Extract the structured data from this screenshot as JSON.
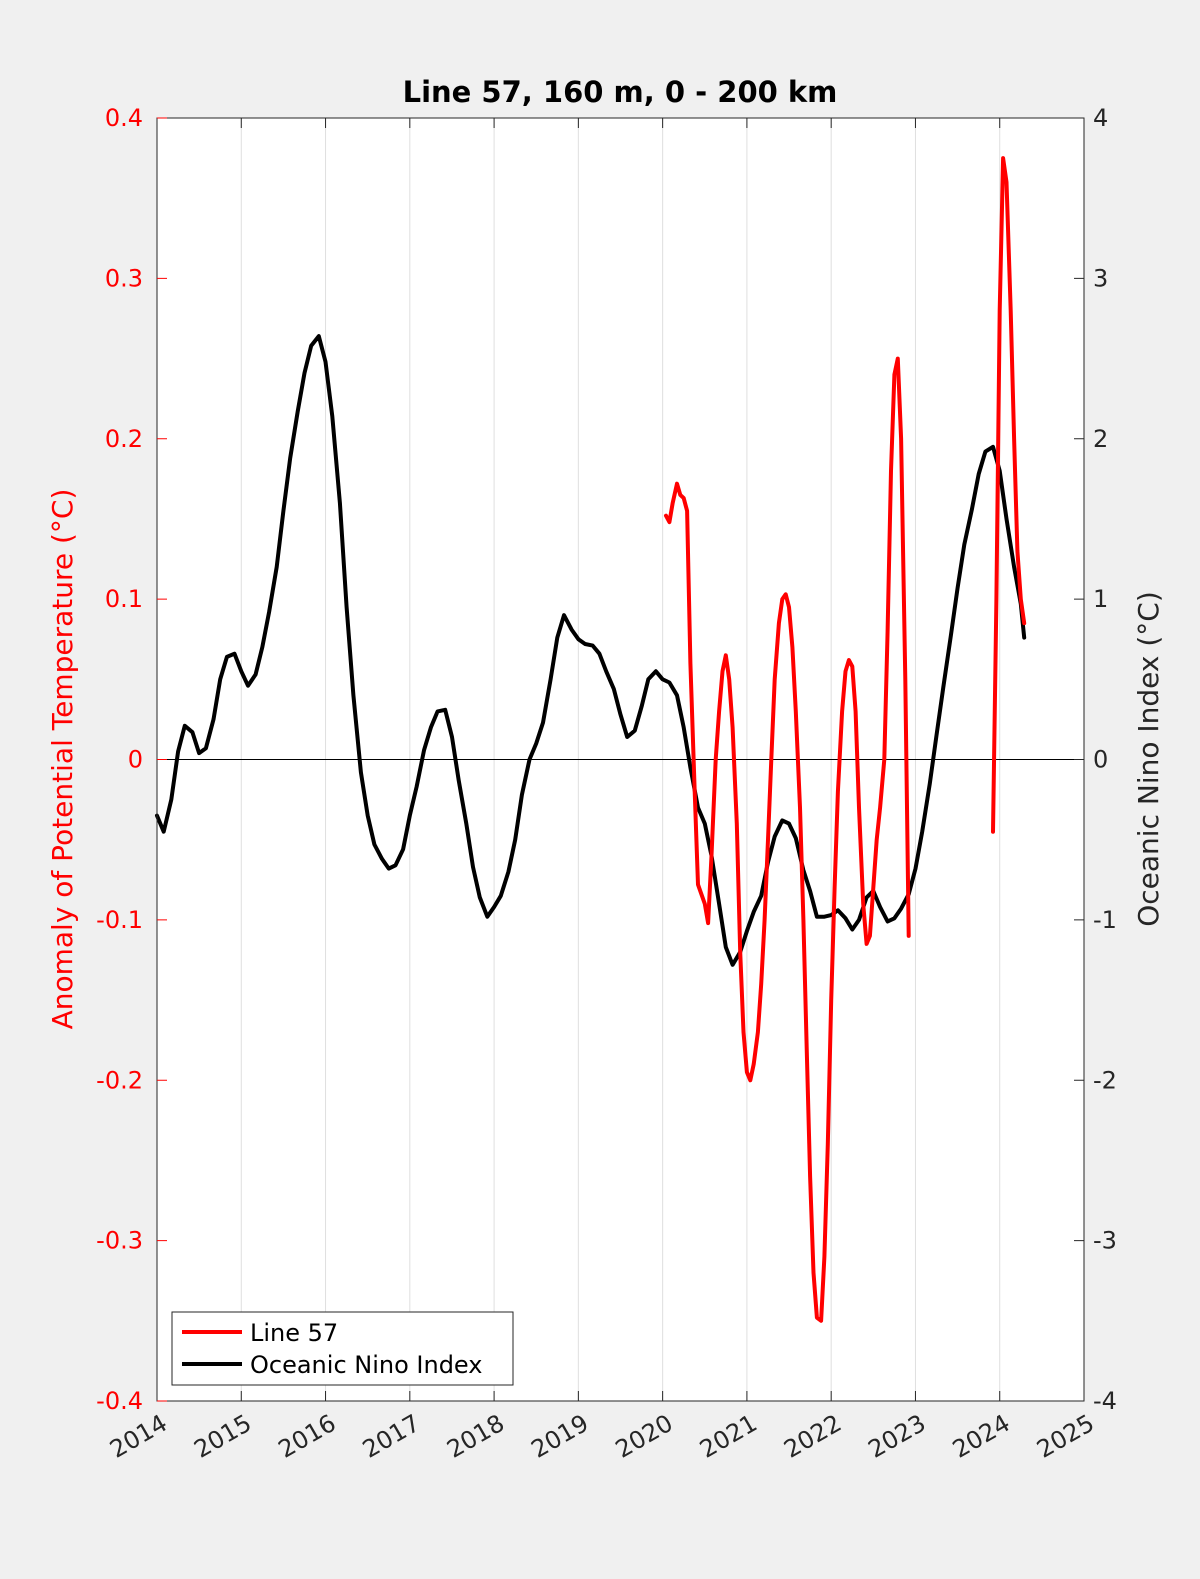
{
  "chart_data": {
    "type": "line",
    "title": "Line 57, 160 m, 0 - 200 km",
    "xlabel": "",
    "ylabel_left": "Anomaly of Potential Temperature (°C)",
    "ylabel_right": "Oceanic Nino Index (°C)",
    "xlim": [
      2014,
      2025
    ],
    "ylim_left": [
      -0.4,
      0.4
    ],
    "ylim_right": [
      -4,
      4
    ],
    "x_ticks": [
      "2014",
      "2015",
      "2016",
      "2017",
      "2018",
      "2019",
      "2020",
      "2021",
      "2022",
      "2023",
      "2024",
      "2025"
    ],
    "y_ticks_left": [
      "0.4",
      "0.3",
      "0.2",
      "0.1",
      "0",
      "-0.1",
      "-0.2",
      "-0.3",
      "-0.4"
    ],
    "y_ticks_right": [
      "4",
      "3",
      "2",
      "1",
      "0",
      "-1",
      "-2",
      "-3",
      "-4"
    ],
    "grid": "vertical",
    "legend_position": "bottom-left",
    "colors": {
      "line57": "#ff0000",
      "oni": "#000000",
      "left_axis": "#ff0000",
      "right_axis": "#262626"
    },
    "series": [
      {
        "name": "Line 57",
        "axis": "left",
        "color": "#ff0000",
        "segments": [
          [
            [
              2020.04,
              0.152
            ],
            [
              2020.08,
              0.148
            ],
            [
              2020.12,
              0.16
            ],
            [
              2020.17,
              0.172
            ],
            [
              2020.21,
              0.165
            ],
            [
              2020.25,
              0.163
            ],
            [
              2020.29,
              0.155
            ],
            [
              2020.33,
              0.06
            ],
            [
              2020.38,
              -0.02
            ],
            [
              2020.42,
              -0.078
            ],
            [
              2020.5,
              -0.09
            ],
            [
              2020.54,
              -0.102
            ],
            [
              2020.58,
              -0.06
            ],
            [
              2020.63,
              0.0
            ],
            [
              2020.67,
              0.03
            ],
            [
              2020.71,
              0.055
            ],
            [
              2020.75,
              0.065
            ],
            [
              2020.79,
              0.05
            ],
            [
              2020.83,
              0.02
            ],
            [
              2020.88,
              -0.04
            ],
            [
              2020.92,
              -0.12
            ],
            [
              2020.96,
              -0.17
            ],
            [
              2021.0,
              -0.195
            ],
            [
              2021.04,
              -0.2
            ],
            [
              2021.08,
              -0.19
            ],
            [
              2021.13,
              -0.17
            ],
            [
              2021.17,
              -0.14
            ],
            [
              2021.21,
              -0.1
            ],
            [
              2021.25,
              -0.05
            ],
            [
              2021.29,
              0.0
            ],
            [
              2021.33,
              0.05
            ],
            [
              2021.38,
              0.085
            ],
            [
              2021.42,
              0.1
            ],
            [
              2021.46,
              0.103
            ],
            [
              2021.5,
              0.095
            ],
            [
              2021.54,
              0.07
            ],
            [
              2021.58,
              0.03
            ],
            [
              2021.63,
              -0.03
            ],
            [
              2021.67,
              -0.1
            ],
            [
              2021.71,
              -0.18
            ],
            [
              2021.75,
              -0.26
            ],
            [
              2021.79,
              -0.32
            ],
            [
              2021.83,
              -0.348
            ],
            [
              2021.88,
              -0.35
            ],
            [
              2021.92,
              -0.31
            ],
            [
              2021.96,
              -0.24
            ],
            [
              2022.0,
              -0.15
            ],
            [
              2022.04,
              -0.08
            ],
            [
              2022.08,
              -0.02
            ],
            [
              2022.13,
              0.03
            ],
            [
              2022.17,
              0.055
            ],
            [
              2022.21,
              0.062
            ],
            [
              2022.25,
              0.058
            ],
            [
              2022.29,
              0.03
            ],
            [
              2022.33,
              -0.03
            ],
            [
              2022.38,
              -0.09
            ],
            [
              2022.42,
              -0.115
            ],
            [
              2022.46,
              -0.11
            ],
            [
              2022.5,
              -0.08
            ],
            [
              2022.54,
              -0.05
            ],
            [
              2022.58,
              -0.03
            ],
            [
              2022.63,
              0.0
            ],
            [
              2022.67,
              0.08
            ],
            [
              2022.71,
              0.18
            ],
            [
              2022.75,
              0.24
            ],
            [
              2022.79,
              0.25
            ],
            [
              2022.83,
              0.2
            ],
            [
              2022.88,
              0.05
            ],
            [
              2022.92,
              -0.11
            ]
          ],
          [
            [
              2023.92,
              -0.045
            ],
            [
              2023.96,
              0.1
            ],
            [
              2024.0,
              0.28
            ],
            [
              2024.04,
              0.375
            ],
            [
              2024.08,
              0.36
            ],
            [
              2024.13,
              0.28
            ],
            [
              2024.17,
              0.2
            ],
            [
              2024.21,
              0.13
            ],
            [
              2024.25,
              0.1
            ],
            [
              2024.29,
              0.085
            ]
          ]
        ]
      },
      {
        "name": "Oceanic Nino Index",
        "axis": "right",
        "color": "#000000",
        "segments": [
          [
            [
              2014.0,
              -0.35
            ],
            [
              2014.08,
              -0.45
            ],
            [
              2014.17,
              -0.25
            ],
            [
              2014.25,
              0.05
            ],
            [
              2014.33,
              0.21
            ],
            [
              2014.42,
              0.17
            ],
            [
              2014.5,
              0.04
            ],
            [
              2014.58,
              0.07
            ],
            [
              2014.67,
              0.25
            ],
            [
              2014.75,
              0.5
            ],
            [
              2014.83,
              0.64
            ],
            [
              2014.92,
              0.66
            ],
            [
              2015.0,
              0.55
            ],
            [
              2015.08,
              0.46
            ],
            [
              2015.17,
              0.53
            ],
            [
              2015.25,
              0.7
            ],
            [
              2015.33,
              0.92
            ],
            [
              2015.42,
              1.2
            ],
            [
              2015.5,
              1.55
            ],
            [
              2015.58,
              1.88
            ],
            [
              2015.67,
              2.17
            ],
            [
              2015.75,
              2.41
            ],
            [
              2015.83,
              2.58
            ],
            [
              2015.92,
              2.64
            ],
            [
              2016.0,
              2.48
            ],
            [
              2016.08,
              2.14
            ],
            [
              2016.17,
              1.6
            ],
            [
              2016.25,
              0.95
            ],
            [
              2016.33,
              0.4
            ],
            [
              2016.42,
              -0.08
            ],
            [
              2016.5,
              -0.35
            ],
            [
              2016.58,
              -0.53
            ],
            [
              2016.67,
              -0.62
            ],
            [
              2016.75,
              -0.68
            ],
            [
              2016.83,
              -0.66
            ],
            [
              2016.92,
              -0.56
            ],
            [
              2017.0,
              -0.35
            ],
            [
              2017.08,
              -0.17
            ],
            [
              2017.17,
              0.06
            ],
            [
              2017.25,
              0.2
            ],
            [
              2017.33,
              0.3
            ],
            [
              2017.42,
              0.31
            ],
            [
              2017.5,
              0.14
            ],
            [
              2017.58,
              -0.13
            ],
            [
              2017.67,
              -0.4
            ],
            [
              2017.75,
              -0.67
            ],
            [
              2017.83,
              -0.86
            ],
            [
              2017.92,
              -0.98
            ],
            [
              2018.0,
              -0.92
            ],
            [
              2018.08,
              -0.85
            ],
            [
              2018.17,
              -0.7
            ],
            [
              2018.25,
              -0.5
            ],
            [
              2018.33,
              -0.22
            ],
            [
              2018.42,
              0.0
            ],
            [
              2018.5,
              0.1
            ],
            [
              2018.58,
              0.23
            ],
            [
              2018.67,
              0.5
            ],
            [
              2018.75,
              0.76
            ],
            [
              2018.83,
              0.9
            ],
            [
              2018.92,
              0.81
            ],
            [
              2019.0,
              0.75
            ],
            [
              2019.08,
              0.72
            ],
            [
              2019.17,
              0.71
            ],
            [
              2019.25,
              0.66
            ],
            [
              2019.33,
              0.55
            ],
            [
              2019.42,
              0.44
            ],
            [
              2019.5,
              0.28
            ],
            [
              2019.58,
              0.14
            ],
            [
              2019.67,
              0.18
            ],
            [
              2019.75,
              0.33
            ],
            [
              2019.83,
              0.5
            ],
            [
              2019.92,
              0.55
            ],
            [
              2020.0,
              0.5
            ],
            [
              2020.08,
              0.48
            ],
            [
              2020.17,
              0.4
            ],
            [
              2020.25,
              0.2
            ],
            [
              2020.33,
              -0.05
            ],
            [
              2020.42,
              -0.3
            ],
            [
              2020.5,
              -0.4
            ],
            [
              2020.58,
              -0.6
            ],
            [
              2020.67,
              -0.9
            ],
            [
              2020.75,
              -1.17
            ],
            [
              2020.83,
              -1.28
            ],
            [
              2020.92,
              -1.2
            ],
            [
              2021.0,
              -1.07
            ],
            [
              2021.08,
              -0.95
            ],
            [
              2021.17,
              -0.85
            ],
            [
              2021.25,
              -0.64
            ],
            [
              2021.33,
              -0.48
            ],
            [
              2021.42,
              -0.38
            ],
            [
              2021.5,
              -0.4
            ],
            [
              2021.58,
              -0.49
            ],
            [
              2021.67,
              -0.69
            ],
            [
              2021.75,
              -0.82
            ],
            [
              2021.83,
              -0.98
            ],
            [
              2021.92,
              -0.98
            ],
            [
              2022.0,
              -0.97
            ],
            [
              2022.08,
              -0.94
            ],
            [
              2022.17,
              -0.99
            ],
            [
              2022.25,
              -1.06
            ],
            [
              2022.33,
              -1.0
            ],
            [
              2022.42,
              -0.86
            ],
            [
              2022.5,
              -0.82
            ],
            [
              2022.58,
              -0.92
            ],
            [
              2022.67,
              -1.01
            ],
            [
              2022.75,
              -0.99
            ],
            [
              2022.83,
              -0.93
            ],
            [
              2022.92,
              -0.84
            ],
            [
              2023.0,
              -0.68
            ],
            [
              2023.08,
              -0.45
            ],
            [
              2023.17,
              -0.15
            ],
            [
              2023.25,
              0.15
            ],
            [
              2023.33,
              0.45
            ],
            [
              2023.42,
              0.77
            ],
            [
              2023.5,
              1.07
            ],
            [
              2023.58,
              1.34
            ],
            [
              2023.67,
              1.56
            ],
            [
              2023.75,
              1.78
            ],
            [
              2023.83,
              1.92
            ],
            [
              2023.92,
              1.95
            ],
            [
              2024.0,
              1.8
            ],
            [
              2024.08,
              1.5
            ],
            [
              2024.17,
              1.2
            ],
            [
              2024.25,
              0.97
            ],
            [
              2024.29,
              0.76
            ]
          ]
        ]
      }
    ]
  }
}
